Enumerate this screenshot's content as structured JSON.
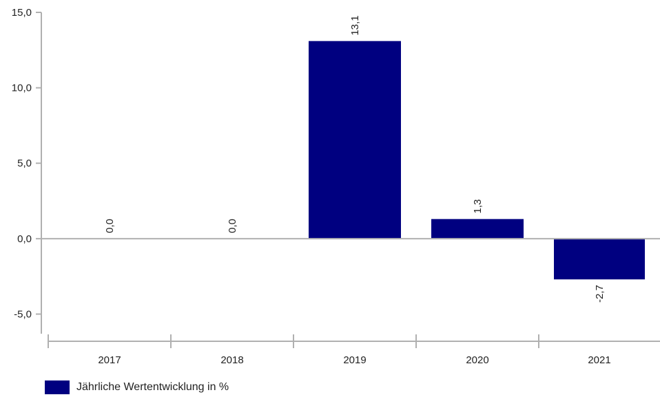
{
  "chart_data": {
    "type": "bar",
    "categories": [
      "2017",
      "2018",
      "2019",
      "2020",
      "2021"
    ],
    "series": [
      {
        "name": "Jährliche Wertentwicklung in %",
        "values": [
          0.0,
          0.0,
          13.1,
          1.3,
          -2.7
        ],
        "labels": [
          "0,0",
          "0,0",
          "13,1",
          "1,3",
          "-2,7"
        ]
      }
    ],
    "yticks": [
      -5.0,
      0.0,
      5.0,
      10.0,
      15.0
    ],
    "ytick_labels": [
      "-5,0",
      "0,0",
      "5,0",
      "10,0",
      "15,0"
    ],
    "ylim": [
      -6.3,
      15.0
    ],
    "grid": false,
    "legend_position": "bottom-left",
    "colors": {
      "bar": "#000080",
      "axis": "#b0b0b0",
      "text": "#222222"
    }
  }
}
